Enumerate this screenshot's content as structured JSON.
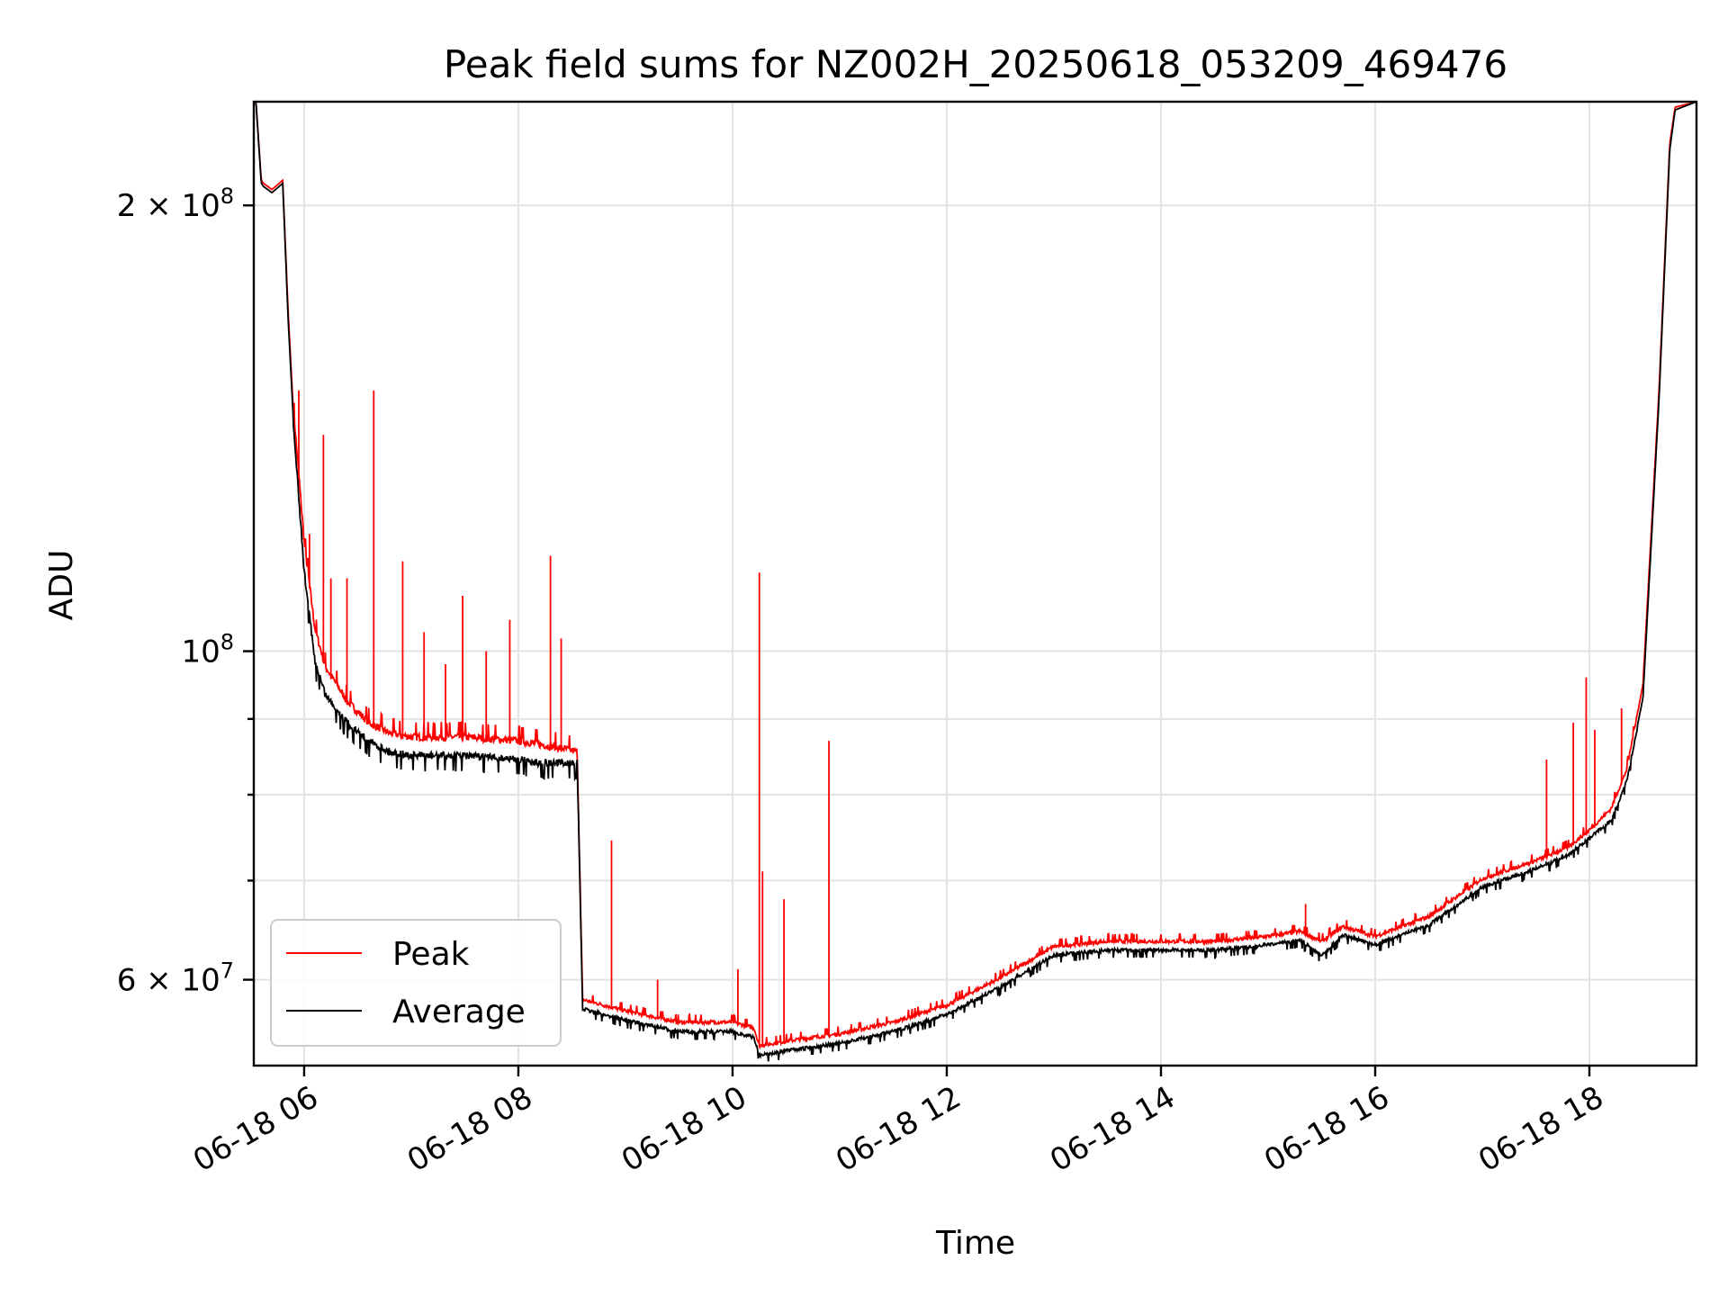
{
  "chart_data": {
    "type": "line",
    "title": "Peak field sums for NZ002H_20250618_053209_469476",
    "xlabel": "Time",
    "ylabel": "ADU",
    "y_scale": "log",
    "x_unit": "hours",
    "xlim": [
      5.53,
      19.0
    ],
    "ylim": [
      52500000,
      235000000
    ],
    "x_ticks": [
      {
        "value": 6,
        "label": "06-18 06"
      },
      {
        "value": 8,
        "label": "06-18 08"
      },
      {
        "value": 10,
        "label": "06-18 10"
      },
      {
        "value": 12,
        "label": "06-18 12"
      },
      {
        "value": 14,
        "label": "06-18 14"
      },
      {
        "value": 16,
        "label": "06-18 16"
      },
      {
        "value": 18,
        "label": "06-18 18"
      }
    ],
    "y_major_ticks": [
      {
        "value": 200000000,
        "mantissa": "2",
        "exponent": "8"
      },
      {
        "value": 100000000,
        "mantissa": "",
        "exponent": "8"
      },
      {
        "value": 60000000,
        "mantissa": "6",
        "exponent": "7"
      }
    ],
    "y_minor_ticks": [
      70000000,
      80000000,
      90000000
    ],
    "grid": true,
    "legend": {
      "placement": "lower-left"
    },
    "series": [
      {
        "name": "Peak",
        "color": "#ff0000",
        "x": [
          5.55,
          5.6,
          5.62,
          5.7,
          5.8,
          5.85,
          5.9,
          6.0,
          6.1,
          6.2,
          6.4,
          6.6,
          6.8,
          7.0,
          7.5,
          8.0,
          8.2,
          8.4,
          8.55,
          8.6,
          9.0,
          9.5,
          10.0,
          10.2,
          10.25,
          10.6,
          11.0,
          11.5,
          12.0,
          12.5,
          13.0,
          13.5,
          14.0,
          14.5,
          15.0,
          15.3,
          15.5,
          15.7,
          16.0,
          16.5,
          17.0,
          17.5,
          17.8,
          18.0,
          18.2,
          18.35,
          18.5,
          18.65,
          18.75,
          18.8,
          19.0
        ],
        "y": [
          235000000,
          208000000,
          207000000,
          205000000,
          208000000,
          170000000,
          145000000,
          118000000,
          103000000,
          97000000,
          92000000,
          89000000,
          87500000,
          87000000,
          87000000,
          86500000,
          86000000,
          85500000,
          85000000,
          58000000,
          57000000,
          56000000,
          56000000,
          55500000,
          54000000,
          54500000,
          55000000,
          56000000,
          57500000,
          60000000,
          63000000,
          63500000,
          63500000,
          63500000,
          64000000,
          64500000,
          63500000,
          65000000,
          64000000,
          66000000,
          70000000,
          72000000,
          73500000,
          75500000,
          78000000,
          83000000,
          95000000,
          150000000,
          220000000,
          233000000,
          235000000
        ]
      },
      {
        "name": "Average",
        "color": "#000000",
        "x": [
          5.55,
          5.6,
          5.62,
          5.7,
          5.8,
          5.85,
          5.9,
          6.0,
          6.1,
          6.2,
          6.4,
          6.6,
          6.8,
          7.0,
          7.5,
          8.0,
          8.2,
          8.4,
          8.55,
          8.6,
          9.0,
          9.5,
          10.0,
          10.2,
          10.25,
          10.6,
          11.0,
          11.5,
          12.0,
          12.5,
          13.0,
          13.5,
          14.0,
          14.5,
          15.0,
          15.3,
          15.5,
          15.7,
          16.0,
          16.5,
          17.0,
          17.5,
          17.8,
          18.0,
          18.2,
          18.35,
          18.5,
          18.65,
          18.75,
          18.8,
          19.0
        ],
        "y": [
          235000000,
          207000000,
          206000000,
          204000000,
          207000000,
          168000000,
          143000000,
          114000000,
          99000000,
          94000000,
          90000000,
          87500000,
          86000000,
          85500000,
          85500000,
          85000000,
          84500000,
          84500000,
          84500000,
          57500000,
          56500000,
          55500000,
          55500000,
          55000000,
          53500000,
          54000000,
          54500000,
          55500000,
          57000000,
          59500000,
          62500000,
          63000000,
          63000000,
          63000000,
          63500000,
          64000000,
          62500000,
          64500000,
          63500000,
          65500000,
          69500000,
          71500000,
          73000000,
          75000000,
          77000000,
          82000000,
          93000000,
          148000000,
          218000000,
          232000000,
          235000000
        ]
      }
    ],
    "spikes": [
      {
        "x": 5.95,
        "y": 150000000
      },
      {
        "x": 6.05,
        "y": 120000000
      },
      {
        "x": 6.18,
        "y": 140000000
      },
      {
        "x": 6.25,
        "y": 112000000
      },
      {
        "x": 6.4,
        "y": 112000000
      },
      {
        "x": 6.65,
        "y": 150000000
      },
      {
        "x": 6.92,
        "y": 115000000
      },
      {
        "x": 7.12,
        "y": 103000000
      },
      {
        "x": 7.32,
        "y": 98000000
      },
      {
        "x": 7.48,
        "y": 109000000
      },
      {
        "x": 7.7,
        "y": 100000000
      },
      {
        "x": 7.92,
        "y": 105000000
      },
      {
        "x": 8.3,
        "y": 116000000
      },
      {
        "x": 8.4,
        "y": 102000000
      },
      {
        "x": 8.87,
        "y": 74500000
      },
      {
        "x": 9.3,
        "y": 60000000
      },
      {
        "x": 10.05,
        "y": 61000000
      },
      {
        "x": 10.25,
        "y": 113000000
      },
      {
        "x": 10.28,
        "y": 71000000
      },
      {
        "x": 10.48,
        "y": 68000000
      },
      {
        "x": 10.9,
        "y": 87000000
      },
      {
        "x": 15.35,
        "y": 67500000
      },
      {
        "x": 17.6,
        "y": 84500000
      },
      {
        "x": 17.85,
        "y": 89500000
      },
      {
        "x": 17.97,
        "y": 96000000
      },
      {
        "x": 18.05,
        "y": 88500000
      },
      {
        "x": 18.3,
        "y": 91500000
      }
    ]
  }
}
